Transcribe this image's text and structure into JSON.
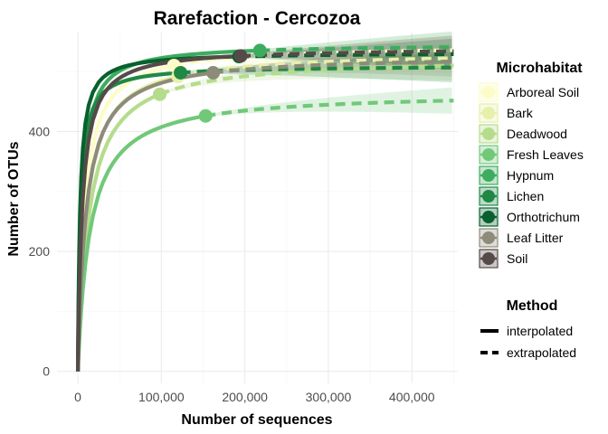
{
  "chart_data": {
    "type": "line",
    "title": "Rarefaction - Cercozoa",
    "xlabel": "Number of sequences",
    "ylabel": "Number of OTUs",
    "xlim": [
      -25000,
      455000
    ],
    "ylim": [
      -20,
      565
    ],
    "x_ticks": [
      0,
      100000,
      200000,
      300000,
      400000
    ],
    "x_tick_labels": [
      "0",
      "100,000",
      "200,000",
      "300,000",
      "400,000"
    ],
    "y_ticks": [
      0,
      200,
      400
    ],
    "y_tick_labels": [
      "0",
      "200",
      "400"
    ],
    "grid": true,
    "legend_position": "right",
    "legend_title": "Microhabitat",
    "method_legend_title": "Method",
    "method_legend": [
      {
        "label": "interpolated",
        "linestyle": "solid"
      },
      {
        "label": "extrapolated",
        "linestyle": "dashed"
      }
    ],
    "series": [
      {
        "name": "Arboreal Soil",
        "color": "#fdfcc6",
        "sample_size": 115000,
        "observed": 510,
        "asymptote": 545
      },
      {
        "name": "Bark",
        "color": "#e6f0a8",
        "sample_size": 120000,
        "observed": 492,
        "asymptote": 534
      },
      {
        "name": "Deadwood",
        "color": "#b5dc8c",
        "sample_size": 98000,
        "observed": 462,
        "asymptote": 525
      },
      {
        "name": "Fresh Leaves",
        "color": "#72c879",
        "sample_size": 153000,
        "observed": 426,
        "asymptote": 466
      },
      {
        "name": "Hypnum",
        "color": "#3dac5e",
        "sample_size": 218000,
        "observed": 535,
        "asymptote": 546
      },
      {
        "name": "Lichen",
        "color": "#208845",
        "sample_size": 123000,
        "observed": 498,
        "asymptote": 510
      },
      {
        "name": "Orthotrichum",
        "color": "#08602e",
        "sample_size": 193000,
        "observed": 525,
        "asymptote": 532
      },
      {
        "name": "Leaf Litter",
        "color": "#8d8b7a",
        "sample_size": 162000,
        "observed": 498,
        "asymptote": 528
      },
      {
        "name": "Soil",
        "color": "#564a48",
        "sample_size": 195000,
        "observed": 526,
        "asymptote": 540
      }
    ]
  }
}
